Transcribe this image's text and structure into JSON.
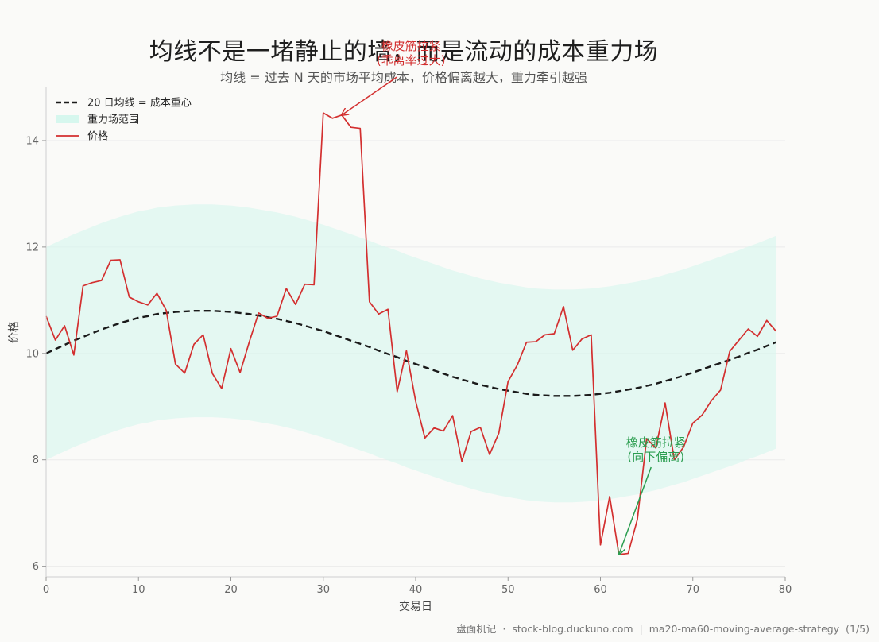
{
  "page": {
    "title": "均线不是一堵静止的墙，而是流动的成本重力场",
    "subtitle": "均线 = 过去 N 天的市场平均成本，价格偏离越大，重力牵引越强",
    "footer": {
      "brand": "盘面机记",
      "separator": "·",
      "site": "stock-blog.duckuno.com",
      "divider": "|",
      "slug": "ma20-ma60-moving-average-strategy",
      "page_index": "(1/5)"
    }
  },
  "colors": {
    "background": "#fafaf8",
    "ma": "#1a1a1a",
    "band": "#d6f7ee",
    "price": "#d32f2f",
    "annotation_up": "#d32f2f",
    "annotation_down": "#2a9d4f",
    "grid": "#ebebeb"
  },
  "chart_data": {
    "type": "line",
    "xlabel": "交易日",
    "ylabel": "价格",
    "xlim": [
      0,
      80
    ],
    "ylim": [
      5.8,
      15.0
    ],
    "xticks": [
      0,
      10,
      20,
      30,
      40,
      50,
      60,
      70,
      80
    ],
    "yticks": [
      6,
      8,
      10,
      12,
      14
    ],
    "grid": "horizontal",
    "legend_position": "top-left",
    "legend": [
      {
        "key": "ma",
        "label": "20 日均线 = 成本重心",
        "style": "dashed-line"
      },
      {
        "key": "band",
        "label": "重力场范围",
        "style": "fill"
      },
      {
        "key": "price",
        "label": "价格",
        "style": "line"
      }
    ],
    "x": [
      0,
      1,
      2,
      3,
      4,
      5,
      6,
      7,
      8,
      9,
      10,
      11,
      12,
      13,
      14,
      15,
      16,
      17,
      18,
      19,
      20,
      21,
      22,
      23,
      24,
      25,
      26,
      27,
      28,
      29,
      30,
      31,
      32,
      33,
      34,
      35,
      36,
      37,
      38,
      39,
      40,
      41,
      42,
      43,
      44,
      45,
      46,
      47,
      48,
      49,
      50,
      51,
      52,
      53,
      54,
      55,
      56,
      57,
      58,
      59,
      60,
      61,
      62,
      63,
      64,
      65,
      66,
      67,
      68,
      69,
      70,
      71,
      72,
      73,
      74,
      75,
      76,
      77,
      78,
      79
    ],
    "series": [
      {
        "name": "价格",
        "key": "price",
        "values": [
          10.7,
          10.25,
          10.52,
          9.97,
          11.27,
          11.33,
          11.37,
          11.75,
          11.76,
          11.06,
          10.97,
          10.91,
          11.13,
          10.81,
          9.8,
          9.63,
          10.17,
          10.35,
          9.62,
          9.34,
          10.09,
          9.64,
          10.22,
          10.76,
          10.66,
          10.7,
          11.22,
          10.92,
          11.3,
          11.29,
          14.52,
          14.42,
          14.48,
          14.25,
          14.23,
          10.97,
          10.74,
          10.83,
          9.28,
          10.05,
          9.1,
          8.41,
          8.6,
          8.54,
          8.83,
          7.97,
          8.53,
          8.61,
          8.1,
          8.5,
          9.47,
          9.78,
          10.21,
          10.22,
          10.35,
          10.37,
          10.88,
          10.06,
          10.27,
          10.35,
          6.4,
          7.31,
          6.22,
          6.24,
          6.88,
          8.4,
          8.22,
          9.07,
          8.0,
          8.24,
          8.69,
          8.84,
          9.11,
          9.31,
          10.04,
          10.25,
          10.46,
          10.32,
          10.62,
          10.42
        ]
      },
      {
        "name": "20 日均线 = 成本重心",
        "key": "ma",
        "values": [
          10.0,
          10.08,
          10.16,
          10.24,
          10.31,
          10.38,
          10.45,
          10.51,
          10.57,
          10.62,
          10.67,
          10.7,
          10.74,
          10.76,
          10.78,
          10.79,
          10.8,
          10.8,
          10.8,
          10.79,
          10.78,
          10.76,
          10.74,
          10.71,
          10.68,
          10.65,
          10.61,
          10.57,
          10.52,
          10.47,
          10.42,
          10.36,
          10.3,
          10.24,
          10.18,
          10.12,
          10.05,
          9.99,
          9.93,
          9.86,
          9.8,
          9.74,
          9.68,
          9.62,
          9.56,
          9.51,
          9.46,
          9.41,
          9.37,
          9.33,
          9.3,
          9.27,
          9.24,
          9.22,
          9.21,
          9.2,
          9.2,
          9.2,
          9.21,
          9.22,
          9.24,
          9.26,
          9.29,
          9.32,
          9.35,
          9.39,
          9.43,
          9.48,
          9.53,
          9.58,
          9.64,
          9.7,
          9.76,
          9.82,
          9.88,
          9.94,
          10.01,
          10.07,
          10.14,
          10.21
        ]
      }
    ],
    "band_lower": [
      8.0,
      8.08,
      8.16,
      8.24,
      8.31,
      8.38,
      8.45,
      8.51,
      8.57,
      8.62,
      8.67,
      8.7,
      8.74,
      8.76,
      8.78,
      8.79,
      8.8,
      8.8,
      8.8,
      8.79,
      8.78,
      8.76,
      8.74,
      8.71,
      8.68,
      8.65,
      8.61,
      8.57,
      8.52,
      8.47,
      8.42,
      8.36,
      8.3,
      8.24,
      8.18,
      8.12,
      8.05,
      7.99,
      7.93,
      7.86,
      7.8,
      7.74,
      7.68,
      7.62,
      7.56,
      7.51,
      7.46,
      7.41,
      7.37,
      7.33,
      7.3,
      7.27,
      7.24,
      7.22,
      7.21,
      7.2,
      7.2,
      7.2,
      7.21,
      7.22,
      7.24,
      7.26,
      7.29,
      7.32,
      7.35,
      7.39,
      7.43,
      7.48,
      7.53,
      7.58,
      7.64,
      7.7,
      7.76,
      7.82,
      7.88,
      7.94,
      8.01,
      8.07,
      8.14,
      8.21
    ],
    "band_upper": [
      12.0,
      12.08,
      12.16,
      12.24,
      12.31,
      12.38,
      12.45,
      12.51,
      12.57,
      12.62,
      12.67,
      12.7,
      12.74,
      12.76,
      12.78,
      12.79,
      12.8,
      12.8,
      12.8,
      12.79,
      12.78,
      12.76,
      12.74,
      12.71,
      12.68,
      12.65,
      12.61,
      12.57,
      12.52,
      12.47,
      12.42,
      12.36,
      12.3,
      12.24,
      12.18,
      12.12,
      12.05,
      11.99,
      11.93,
      11.86,
      11.8,
      11.74,
      11.68,
      11.62,
      11.56,
      11.51,
      11.46,
      11.41,
      11.37,
      11.33,
      11.3,
      11.27,
      11.24,
      11.22,
      11.21,
      11.2,
      11.2,
      11.2,
      11.21,
      11.22,
      11.24,
      11.26,
      11.29,
      11.32,
      11.35,
      11.39,
      11.43,
      11.48,
      11.53,
      11.58,
      11.64,
      11.7,
      11.76,
      11.82,
      11.88,
      11.94,
      12.01,
      12.07,
      12.14,
      12.21
    ],
    "annotations": [
      {
        "key": "up",
        "lines": [
          "橡皮筋拉紧",
          "(乖离率过大)"
        ],
        "point": [
          32,
          14.48
        ],
        "text_at": [
          39.5,
          15.7
        ]
      },
      {
        "key": "down",
        "lines": [
          "橡皮筋拉紧",
          "(向下偏离)"
        ],
        "point": [
          62,
          6.22
        ],
        "text_at": [
          66,
          8.25
        ]
      }
    ]
  }
}
